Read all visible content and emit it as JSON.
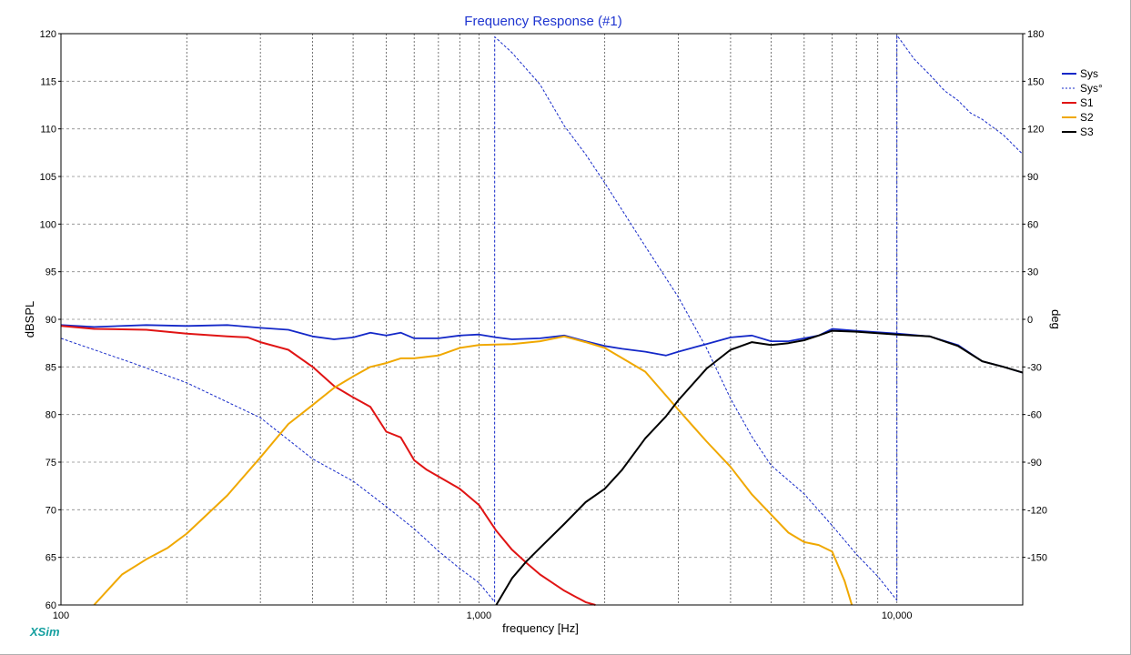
{
  "chart_data": {
    "type": "line",
    "title": "Frequency Response (#1)",
    "xlabel": "frequency [Hz]",
    "ylabel": "dBSPL",
    "y2label": "deg",
    "x_scale": "log",
    "xlim": [
      100,
      20000
    ],
    "ylim": [
      60,
      120
    ],
    "y2lim": [
      -180,
      180
    ],
    "x_tick_labels": [
      "100",
      "1,000",
      "10,000"
    ],
    "y_tick_labels": [
      "120",
      "115",
      "110",
      "105",
      "100",
      "95",
      "90",
      "85",
      "80",
      "75",
      "70",
      "65",
      "60"
    ],
    "y2_tick_labels": [
      "180",
      "150",
      "120",
      "90",
      "60",
      "30",
      "0",
      "-30",
      "-60",
      "-90",
      "-120",
      "-150"
    ],
    "grid": true,
    "legend_position": "top-right",
    "series": [
      {
        "name": "Sys",
        "axis": "left",
        "color": "#1428c8",
        "style": "solid",
        "x": [
          100,
          120,
          160,
          200,
          250,
          300,
          350,
          400,
          450,
          500,
          550,
          600,
          650,
          700,
          750,
          800,
          900,
          1000,
          1100,
          1200,
          1400,
          1600,
          1800,
          2000,
          2200,
          2500,
          2800,
          3000,
          3500,
          4000,
          4500,
          5000,
          5500,
          6000,
          6500,
          7000,
          8000,
          10000,
          12000,
          14000,
          16000,
          18000,
          20000
        ],
        "y": [
          89.4,
          89.2,
          89.4,
          89.3,
          89.4,
          89.1,
          88.9,
          88.2,
          87.9,
          88.1,
          88.6,
          88.3,
          88.6,
          88.0,
          88.0,
          88.0,
          88.3,
          88.4,
          88.1,
          87.9,
          88.0,
          88.3,
          87.7,
          87.2,
          86.9,
          86.6,
          86.2,
          86.6,
          87.4,
          88.1,
          88.3,
          87.7,
          87.7,
          88.0,
          88.3,
          89.0,
          88.8,
          88.5,
          88.2,
          87.3,
          85.6,
          85.0,
          84.4
        ]
      },
      {
        "name": "Sys°",
        "axis": "right",
        "color": "#1428c8",
        "style": "dashed",
        "x": [
          100,
          150,
          200,
          300,
          400,
          500,
          600,
          700,
          800,
          900,
          1000,
          1090,
          1091,
          1200,
          1400,
          1600,
          1800,
          2000,
          2500,
          3000,
          3500,
          4000,
          4500,
          5000,
          6000,
          7000,
          8000,
          9000,
          10000,
          10001,
          11000,
          12000,
          13000,
          14000,
          15000,
          16000,
          18000,
          20000
        ],
        "y": [
          -12,
          -28,
          -40,
          -62,
          -88,
          -102,
          -118,
          -132,
          -146,
          -157,
          -166,
          -178,
          178,
          168,
          148,
          122,
          104,
          86,
          46,
          14,
          -18,
          -50,
          -74,
          -92,
          -110,
          -130,
          -148,
          -162,
          -177,
          179,
          164,
          154,
          144,
          138,
          130,
          126,
          116,
          104
        ]
      },
      {
        "name": "S1",
        "axis": "left",
        "color": "#e01414",
        "style": "solid",
        "x": [
          100,
          120,
          160,
          200,
          250,
          280,
          300,
          350,
          400,
          450,
          500,
          550,
          600,
          650,
          700,
          750,
          800,
          900,
          1000,
          1100,
          1200,
          1300,
          1400,
          1600,
          1800,
          1900
        ],
        "y": [
          89.3,
          89.0,
          88.9,
          88.5,
          88.2,
          88.1,
          87.6,
          86.8,
          85.0,
          83.0,
          81.8,
          80.8,
          78.2,
          77.6,
          75.2,
          74.2,
          73.5,
          72.2,
          70.5,
          67.8,
          65.8,
          64.4,
          63.2,
          61.5,
          60.3,
          60.0
        ]
      },
      {
        "name": "S2",
        "axis": "left",
        "color": "#f0a800",
        "style": "solid",
        "x": [
          120,
          140,
          160,
          180,
          200,
          250,
          300,
          350,
          400,
          450,
          500,
          550,
          600,
          650,
          700,
          800,
          900,
          1000,
          1200,
          1400,
          1600,
          1800,
          2000,
          2500,
          3000,
          3500,
          4000,
          4500,
          5000,
          5500,
          6000,
          6500,
          7000,
          7500,
          7800
        ],
        "y": [
          60.0,
          63.2,
          64.8,
          66.0,
          67.5,
          71.5,
          75.5,
          79.0,
          81.0,
          82.8,
          84.0,
          85.0,
          85.4,
          85.9,
          85.9,
          86.2,
          87.0,
          87.3,
          87.4,
          87.7,
          88.2,
          87.6,
          87.0,
          84.5,
          80.5,
          77.2,
          74.5,
          71.6,
          69.5,
          67.6,
          66.6,
          66.3,
          65.6,
          62.5,
          60.0
        ]
      },
      {
        "name": "S3",
        "axis": "left",
        "color": "#000000",
        "style": "solid",
        "x": [
          1100,
          1200,
          1300,
          1400,
          1600,
          1800,
          2000,
          2200,
          2500,
          2800,
          3000,
          3500,
          4000,
          4500,
          5000,
          5500,
          6000,
          6500,
          7000,
          8000,
          10000,
          12000,
          14000,
          16000,
          18000,
          20000
        ],
        "y": [
          60.0,
          62.8,
          64.6,
          66.0,
          68.5,
          70.8,
          72.2,
          74.2,
          77.5,
          79.8,
          81.5,
          84.8,
          86.8,
          87.6,
          87.3,
          87.5,
          87.8,
          88.3,
          88.8,
          88.7,
          88.4,
          88.2,
          87.2,
          85.6,
          85.0,
          84.4
        ]
      }
    ]
  },
  "brand": "XSim"
}
